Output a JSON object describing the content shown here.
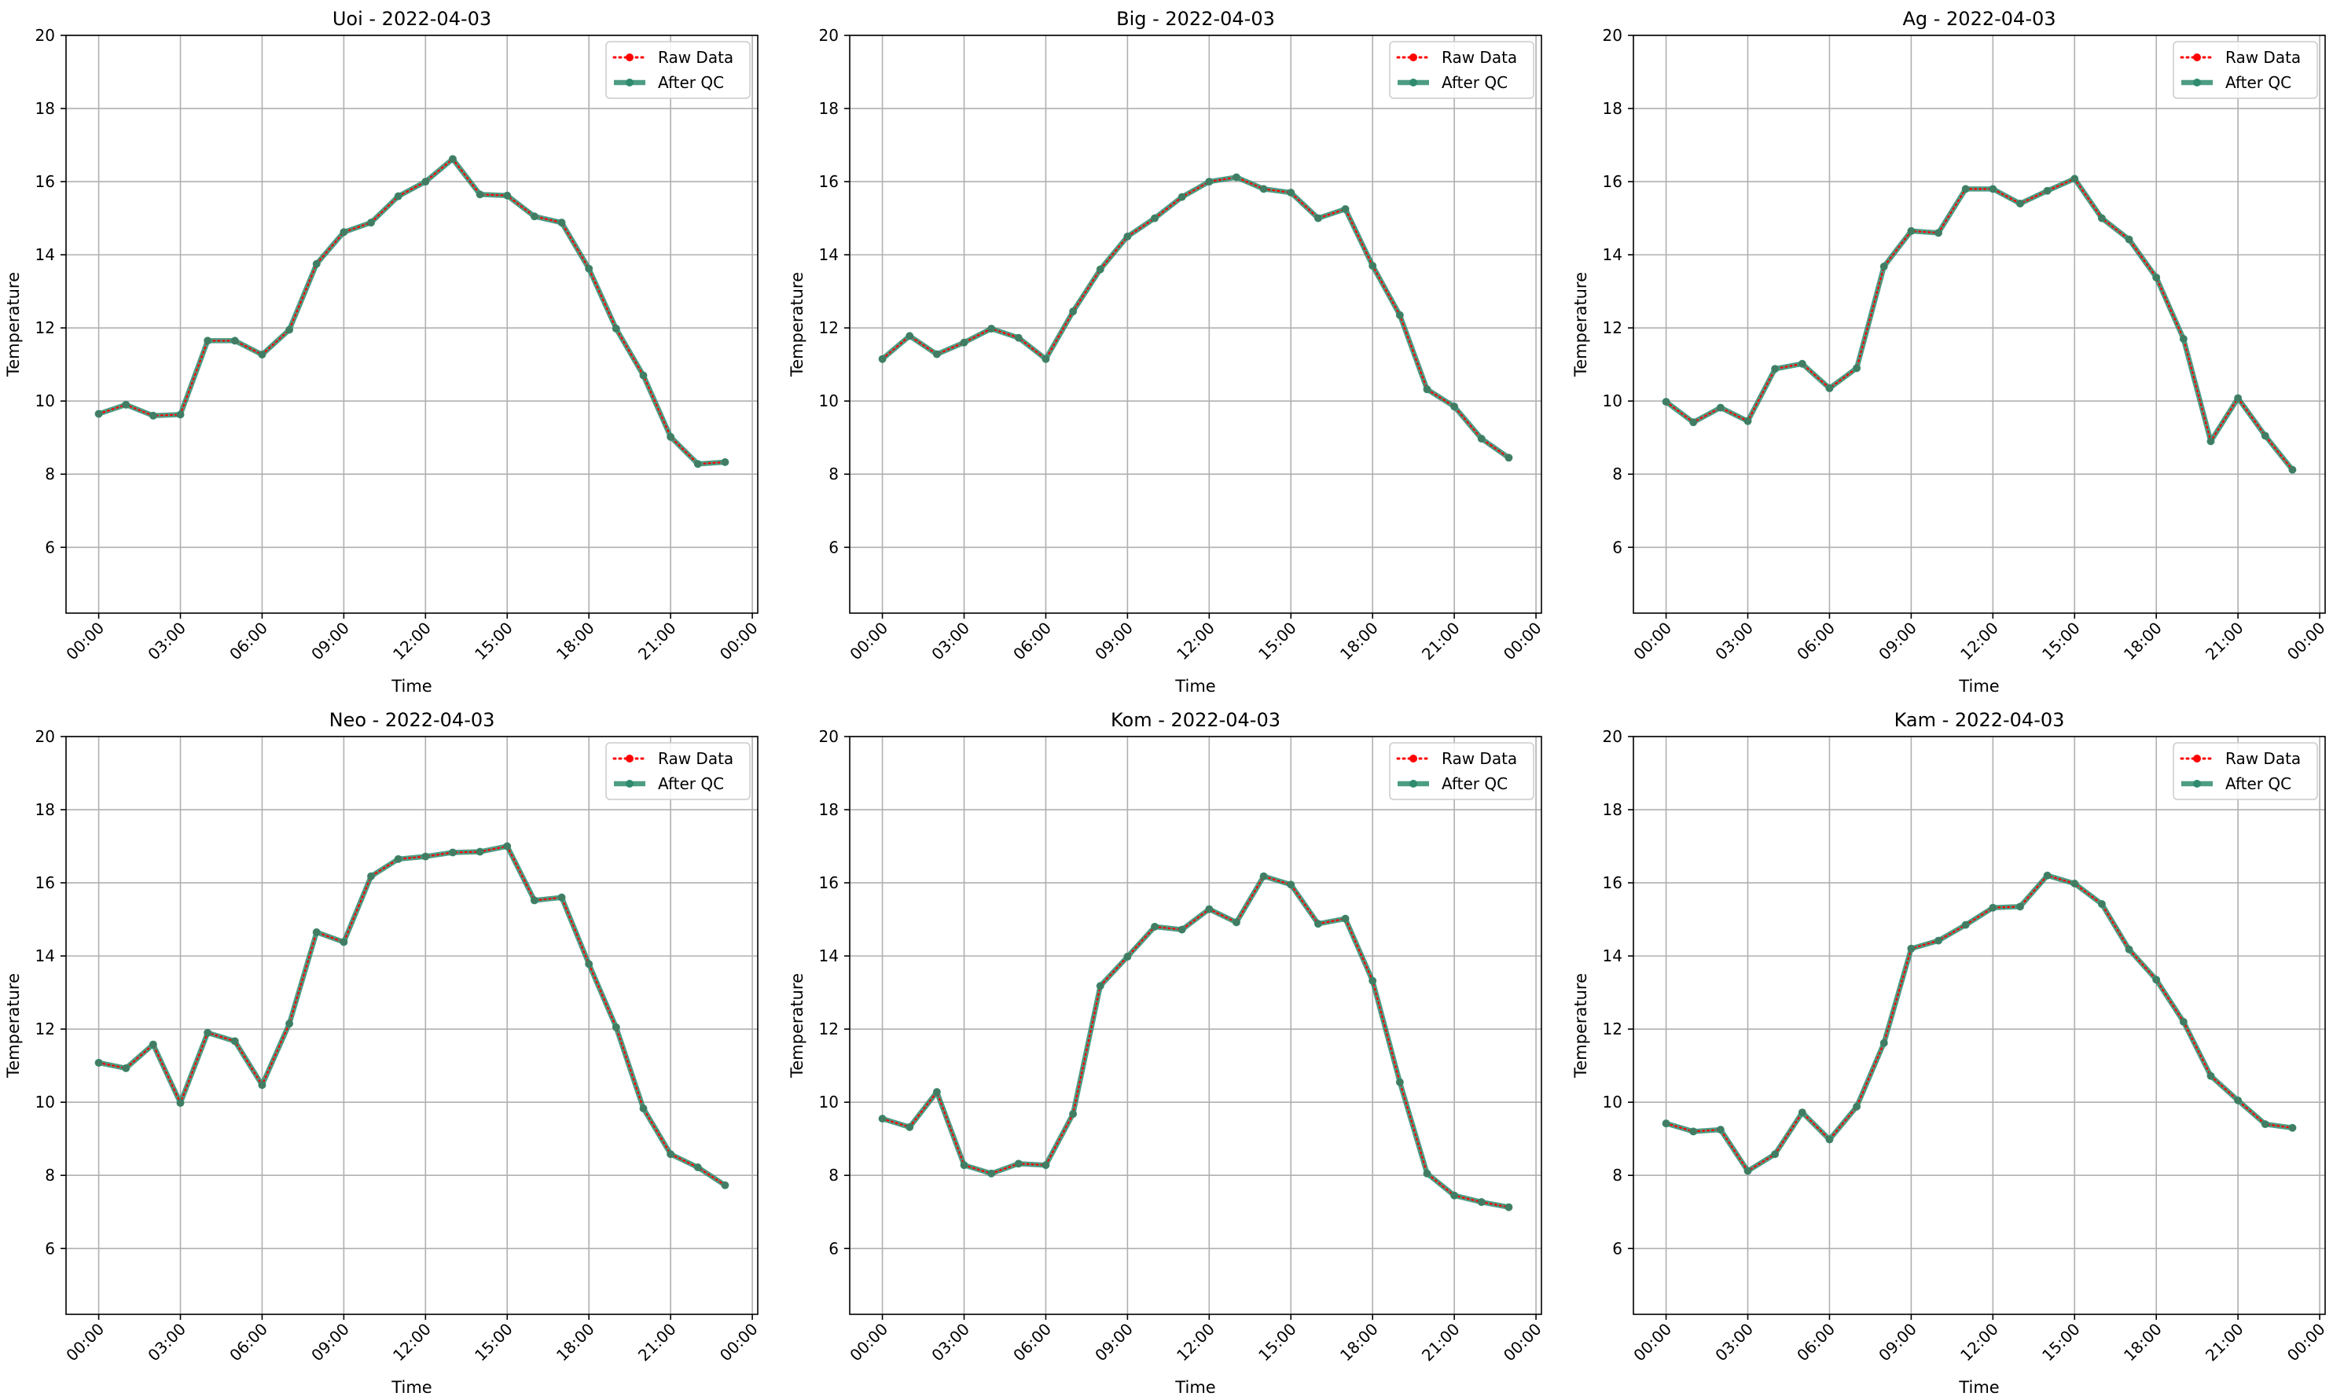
{
  "chart_data": [
    {
      "type": "line",
      "title": "Uoi - 2022-04-03",
      "xlabel": "Time",
      "ylabel": "Temperature",
      "ylim": [
        4.2,
        20
      ],
      "xlim": [
        -1.2,
        24.2
      ],
      "yticks": [
        6,
        8,
        10,
        12,
        14,
        16,
        18,
        20
      ],
      "xticks": [
        0,
        3,
        6,
        9,
        12,
        15,
        18,
        21,
        24
      ],
      "xtick_labels": [
        "00:00",
        "03:00",
        "06:00",
        "09:00",
        "12:00",
        "15:00",
        "18:00",
        "21:00",
        "00:00"
      ],
      "grid": true,
      "legend_position": "top-right",
      "x": [
        0,
        1,
        2,
        3,
        4,
        5,
        6,
        7,
        8,
        9,
        10,
        11,
        12,
        13,
        14,
        15,
        16,
        17,
        18,
        19,
        20,
        21,
        22,
        23
      ],
      "series": [
        {
          "name": "Raw Data",
          "color": "#ff0000",
          "style": "dotted",
          "values": [
            9.65,
            9.9,
            9.6,
            9.63,
            11.65,
            11.65,
            11.27,
            11.95,
            13.75,
            14.62,
            14.88,
            15.6,
            16.0,
            16.62,
            15.65,
            15.62,
            15.05,
            14.88,
            13.62,
            11.98,
            10.7,
            9.02,
            8.28,
            8.33
          ]
        },
        {
          "name": "After QC",
          "color": "#2e8b6e",
          "style": "solid",
          "values": [
            9.65,
            9.9,
            9.6,
            9.63,
            11.65,
            11.65,
            11.27,
            11.95,
            13.75,
            14.62,
            14.88,
            15.6,
            16.0,
            16.62,
            15.65,
            15.62,
            15.05,
            14.88,
            13.62,
            11.98,
            10.7,
            9.02,
            8.28,
            8.33
          ]
        }
      ]
    },
    {
      "type": "line",
      "title": "Big - 2022-04-03",
      "xlabel": "Time",
      "ylabel": "Temperature",
      "ylim": [
        4.2,
        20
      ],
      "xlim": [
        -1.2,
        24.2
      ],
      "yticks": [
        6,
        8,
        10,
        12,
        14,
        16,
        18,
        20
      ],
      "xticks": [
        0,
        3,
        6,
        9,
        12,
        15,
        18,
        21,
        24
      ],
      "xtick_labels": [
        "00:00",
        "03:00",
        "06:00",
        "09:00",
        "12:00",
        "15:00",
        "18:00",
        "21:00",
        "00:00"
      ],
      "grid": true,
      "legend_position": "top-right",
      "x": [
        0,
        1,
        2,
        3,
        4,
        5,
        6,
        7,
        8,
        9,
        10,
        11,
        12,
        13,
        14,
        15,
        16,
        17,
        18,
        19,
        20,
        21,
        22,
        23
      ],
      "series": [
        {
          "name": "Raw Data",
          "color": "#ff0000",
          "style": "dotted",
          "values": [
            11.15,
            11.78,
            11.28,
            11.6,
            11.98,
            11.73,
            11.15,
            12.45,
            13.6,
            14.5,
            15.0,
            15.58,
            16.0,
            16.12,
            15.8,
            15.7,
            15.0,
            15.25,
            13.7,
            12.35,
            10.32,
            9.85,
            8.97,
            8.45
          ]
        },
        {
          "name": "After QC",
          "color": "#2e8b6e",
          "style": "solid",
          "values": [
            11.15,
            11.78,
            11.28,
            11.6,
            11.98,
            11.73,
            11.15,
            12.45,
            13.6,
            14.5,
            15.0,
            15.58,
            16.0,
            16.12,
            15.8,
            15.7,
            15.0,
            15.25,
            13.7,
            12.35,
            10.32,
            9.85,
            8.97,
            8.45
          ]
        }
      ]
    },
    {
      "type": "line",
      "title": "Ag - 2022-04-03",
      "xlabel": "Time",
      "ylabel": "Temperature",
      "ylim": [
        4.2,
        20
      ],
      "xlim": [
        -1.2,
        24.2
      ],
      "yticks": [
        6,
        8,
        10,
        12,
        14,
        16,
        18,
        20
      ],
      "xticks": [
        0,
        3,
        6,
        9,
        12,
        15,
        18,
        21,
        24
      ],
      "xtick_labels": [
        "00:00",
        "03:00",
        "06:00",
        "09:00",
        "12:00",
        "15:00",
        "18:00",
        "21:00",
        "00:00"
      ],
      "grid": true,
      "legend_position": "top-right",
      "x": [
        0,
        1,
        2,
        3,
        4,
        5,
        6,
        7,
        8,
        9,
        10,
        11,
        12,
        13,
        14,
        15,
        16,
        17,
        18,
        19,
        20,
        21,
        22,
        23
      ],
      "series": [
        {
          "name": "Raw Data",
          "color": "#ff0000",
          "style": "dotted",
          "values": [
            9.98,
            9.42,
            9.82,
            9.45,
            10.88,
            11.02,
            10.35,
            10.9,
            13.68,
            14.65,
            14.6,
            15.8,
            15.8,
            15.4,
            15.75,
            16.08,
            15.0,
            14.42,
            13.38,
            11.7,
            8.9,
            10.08,
            9.05,
            8.12
          ]
        },
        {
          "name": "After QC",
          "color": "#2e8b6e",
          "style": "solid",
          "values": [
            9.98,
            9.42,
            9.82,
            9.45,
            10.88,
            11.02,
            10.35,
            10.9,
            13.68,
            14.65,
            14.6,
            15.8,
            15.8,
            15.4,
            15.75,
            16.08,
            15.0,
            14.42,
            13.38,
            11.7,
            8.9,
            10.08,
            9.05,
            8.12
          ]
        }
      ]
    },
    {
      "type": "line",
      "title": "Neo - 2022-04-03",
      "xlabel": "Time",
      "ylabel": "Temperature",
      "ylim": [
        4.2,
        20
      ],
      "xlim": [
        -1.2,
        24.2
      ],
      "yticks": [
        6,
        8,
        10,
        12,
        14,
        16,
        18,
        20
      ],
      "xticks": [
        0,
        3,
        6,
        9,
        12,
        15,
        18,
        21,
        24
      ],
      "xtick_labels": [
        "00:00",
        "03:00",
        "06:00",
        "09:00",
        "12:00",
        "15:00",
        "18:00",
        "21:00",
        "00:00"
      ],
      "grid": true,
      "legend_position": "top-right",
      "x": [
        0,
        1,
        2,
        3,
        4,
        5,
        6,
        7,
        8,
        9,
        10,
        11,
        12,
        13,
        14,
        15,
        16,
        17,
        18,
        19,
        20,
        21,
        22,
        23
      ],
      "series": [
        {
          "name": "Raw Data",
          "color": "#ff0000",
          "style": "dotted",
          "values": [
            11.08,
            10.93,
            11.58,
            9.98,
            11.9,
            11.67,
            10.47,
            12.15,
            14.65,
            14.38,
            16.18,
            16.65,
            16.72,
            16.83,
            16.85,
            17.0,
            15.52,
            15.6,
            13.78,
            12.05,
            9.83,
            8.58,
            8.22,
            7.73
          ]
        },
        {
          "name": "After QC",
          "color": "#2e8b6e",
          "style": "solid",
          "values": [
            11.08,
            10.93,
            11.58,
            9.98,
            11.9,
            11.67,
            10.47,
            12.15,
            14.65,
            14.38,
            16.18,
            16.65,
            16.72,
            16.83,
            16.85,
            17.0,
            15.52,
            15.6,
            13.78,
            12.05,
            9.83,
            8.58,
            8.22,
            7.73
          ]
        }
      ]
    },
    {
      "type": "line",
      "title": "Kom - 2022-04-03",
      "xlabel": "Time",
      "ylabel": "Temperature",
      "ylim": [
        4.2,
        20
      ],
      "xlim": [
        -1.2,
        24.2
      ],
      "yticks": [
        6,
        8,
        10,
        12,
        14,
        16,
        18,
        20
      ],
      "xticks": [
        0,
        3,
        6,
        9,
        12,
        15,
        18,
        21,
        24
      ],
      "xtick_labels": [
        "00:00",
        "03:00",
        "06:00",
        "09:00",
        "12:00",
        "15:00",
        "18:00",
        "21:00",
        "00:00"
      ],
      "grid": true,
      "legend_position": "top-right",
      "x": [
        0,
        1,
        2,
        3,
        4,
        5,
        6,
        7,
        8,
        9,
        10,
        11,
        12,
        13,
        14,
        15,
        16,
        17,
        18,
        19,
        20,
        21,
        22,
        23
      ],
      "series": [
        {
          "name": "Raw Data",
          "color": "#ff0000",
          "style": "dotted",
          "values": [
            9.55,
            9.32,
            10.28,
            8.28,
            8.05,
            8.32,
            8.28,
            9.68,
            13.18,
            13.98,
            14.8,
            14.72,
            15.28,
            14.92,
            16.18,
            15.95,
            14.88,
            15.02,
            13.32,
            10.55,
            8.05,
            7.45,
            7.27,
            7.13
          ]
        },
        {
          "name": "After QC",
          "color": "#2e8b6e",
          "style": "solid",
          "values": [
            9.55,
            9.32,
            10.28,
            8.28,
            8.05,
            8.32,
            8.28,
            9.68,
            13.18,
            13.98,
            14.8,
            14.72,
            15.28,
            14.92,
            16.18,
            15.95,
            14.88,
            15.02,
            13.32,
            10.55,
            8.05,
            7.45,
            7.27,
            7.13
          ]
        }
      ]
    },
    {
      "type": "line",
      "title": "Kam - 2022-04-03",
      "xlabel": "Time",
      "ylabel": "Temperature",
      "ylim": [
        4.2,
        20
      ],
      "xlim": [
        -1.2,
        24.2
      ],
      "yticks": [
        6,
        8,
        10,
        12,
        14,
        16,
        18,
        20
      ],
      "xticks": [
        0,
        3,
        6,
        9,
        12,
        15,
        18,
        21,
        24
      ],
      "xtick_labels": [
        "00:00",
        "03:00",
        "06:00",
        "09:00",
        "12:00",
        "15:00",
        "18:00",
        "21:00",
        "00:00"
      ],
      "grid": true,
      "legend_position": "top-right",
      "x": [
        0,
        1,
        2,
        3,
        4,
        5,
        6,
        7,
        8,
        9,
        10,
        11,
        12,
        13,
        14,
        15,
        16,
        17,
        18,
        19,
        20,
        21,
        22,
        23
      ],
      "series": [
        {
          "name": "Raw Data",
          "color": "#ff0000",
          "style": "dotted",
          "values": [
            9.42,
            9.2,
            9.25,
            8.12,
            8.58,
            9.72,
            8.98,
            9.88,
            11.62,
            14.2,
            14.42,
            14.85,
            15.32,
            15.35,
            16.2,
            15.98,
            15.42,
            14.18,
            13.35,
            12.2,
            10.72,
            10.05,
            9.4,
            9.3
          ]
        },
        {
          "name": "After QC",
          "color": "#2e8b6e",
          "style": "solid",
          "values": [
            9.42,
            9.2,
            9.25,
            8.12,
            8.58,
            9.72,
            8.98,
            9.88,
            11.62,
            14.2,
            14.42,
            14.85,
            15.32,
            15.35,
            16.2,
            15.98,
            15.42,
            14.18,
            13.35,
            12.2,
            10.72,
            10.05,
            9.4,
            9.3
          ]
        }
      ]
    }
  ]
}
